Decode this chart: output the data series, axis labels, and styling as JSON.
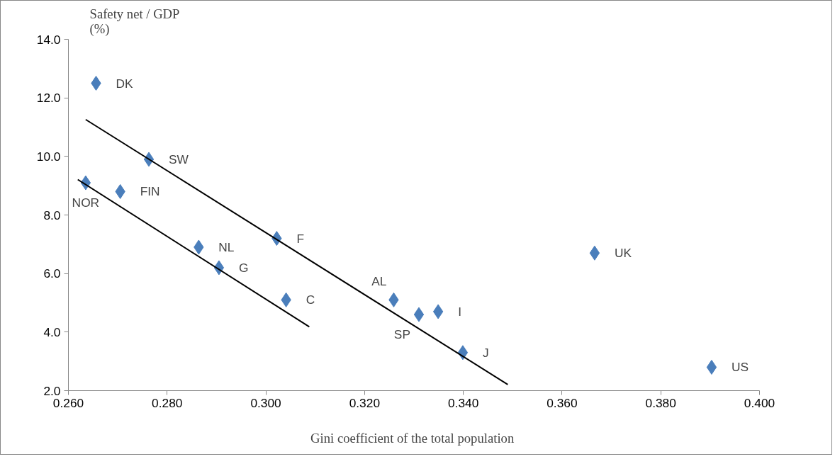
{
  "chart_data": {
    "type": "scatter",
    "xlabel": "Gini coefficient of the total  population",
    "ylabel": "Safety net / GDP\n(%)",
    "xlim": [
      0.26,
      0.4
    ],
    "ylim": [
      2.0,
      14.0
    ],
    "xticks": [
      {
        "value": 0.26,
        "label": "0.260"
      },
      {
        "value": 0.28,
        "label": "0.280"
      },
      {
        "value": 0.3,
        "label": "0.300"
      },
      {
        "value": 0.32,
        "label": "0.320"
      },
      {
        "value": 0.34,
        "label": "0.340"
      },
      {
        "value": 0.36,
        "label": "0.360"
      },
      {
        "value": 0.38,
        "label": "0.380"
      },
      {
        "value": 0.4,
        "label": "0.400"
      }
    ],
    "yticks": [
      {
        "value": 2,
        "label": "2.0"
      },
      {
        "value": 4,
        "label": "4.0"
      },
      {
        "value": 6,
        "label": "6.0"
      },
      {
        "value": 8,
        "label": "8.0"
      },
      {
        "value": 10,
        "label": "10.0"
      },
      {
        "value": 12,
        "label": "12.0"
      },
      {
        "value": 14,
        "label": "14.0"
      }
    ],
    "marker": "diamond",
    "grid": false,
    "series": [
      {
        "color": "#4a7ebb",
        "x": [
          0.2656,
          0.2763,
          0.2635,
          0.2705,
          0.2864,
          0.2905,
          0.3022,
          0.3041,
          0.3259,
          0.331,
          0.3349,
          0.3399,
          0.3666,
          0.3903
        ],
        "values": [
          12.5,
          9.9,
          9.1,
          8.8,
          6.9,
          6.2,
          7.2,
          5.1,
          5.1,
          4.6,
          4.7,
          3.3,
          6.7,
          2.8
        ]
      },
      {
        "type": "line",
        "marker": "none",
        "color": "#000000",
        "x": [
          0.2635,
          0.349
        ],
        "values": [
          11.26,
          2.21
        ]
      },
      {
        "type": "line",
        "marker": "none",
        "color": "#000000",
        "x": [
          0.2619,
          0.3088
        ],
        "values": [
          9.21,
          4.18
        ]
      }
    ],
    "annotations": [
      {
        "text": "DK",
        "x": 0.2656,
        "y": 12.5
      },
      {
        "text": "SW",
        "x": 0.2763,
        "y": 9.9
      },
      {
        "text": "NOR",
        "x": 0.2635,
        "y": 9.1
      },
      {
        "text": "FIN",
        "x": 0.2705,
        "y": 8.8
      },
      {
        "text": "NL",
        "x": 0.2864,
        "y": 6.9
      },
      {
        "text": "G",
        "x": 0.2905,
        "y": 6.2
      },
      {
        "text": "F",
        "x": 0.3022,
        "y": 7.2
      },
      {
        "text": "C",
        "x": 0.3041,
        "y": 5.1
      },
      {
        "text": "AL",
        "x": 0.3259,
        "y": 5.1
      },
      {
        "text": "SP",
        "x": 0.331,
        "y": 4.6
      },
      {
        "text": "I",
        "x": 0.3349,
        "y": 4.7
      },
      {
        "text": "J",
        "x": 0.3399,
        "y": 3.3
      },
      {
        "text": "UK",
        "x": 0.3666,
        "y": 6.7
      },
      {
        "text": "US",
        "x": 0.3903,
        "y": 2.8
      }
    ]
  }
}
